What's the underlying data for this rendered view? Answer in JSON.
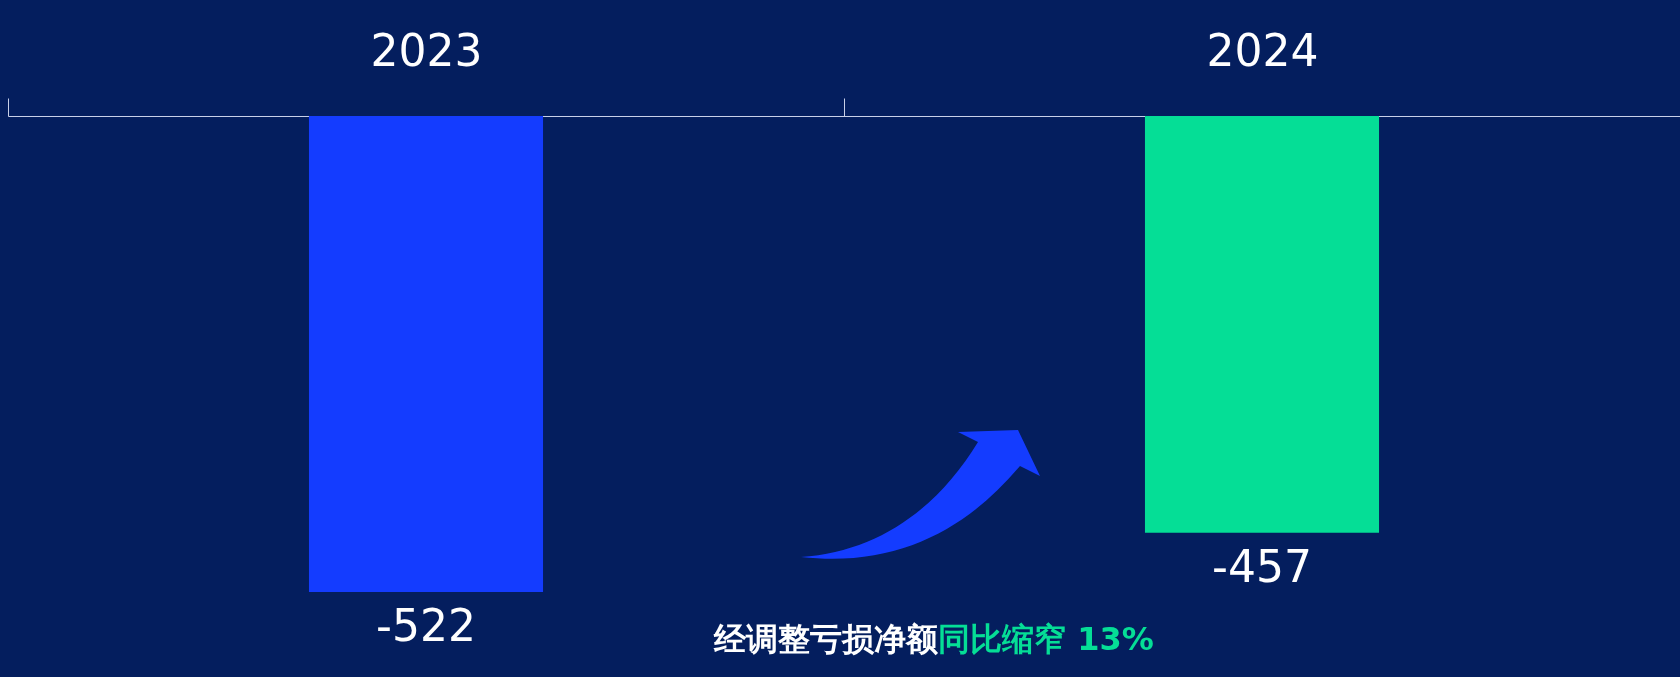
{
  "chart_data": {
    "type": "bar",
    "categories": [
      "2023",
      "2024"
    ],
    "values": [
      -522,
      -457
    ],
    "colors": [
      "#143cff",
      "#05de96"
    ],
    "data_labels": true,
    "tick_labels": "x",
    "annotations": [
      "经调整亏损净额",
      "同比缩窄 13%"
    ]
  }
}
